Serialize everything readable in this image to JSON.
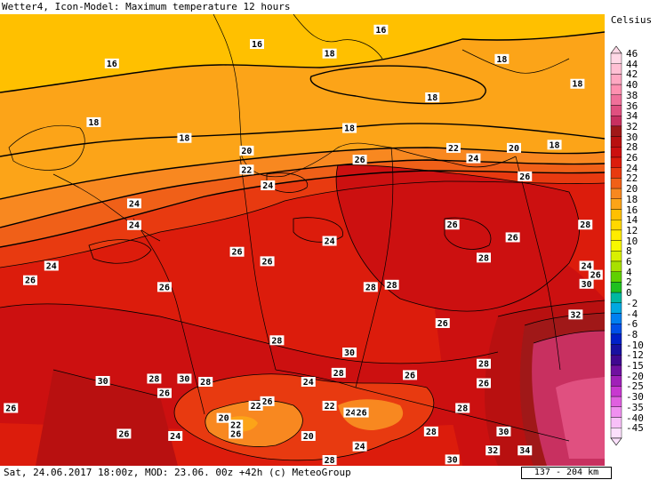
{
  "header": {
    "title": "Wetter4, Icon-Model: Maximum temperature 12 hours"
  },
  "footer": {
    "text": "Sat, 24.06.2017 18:00z, MOD: 23.06. 00z +42h (c) MeteoGroup",
    "scale": "137 - 204 km"
  },
  "legend": {
    "unit": "Celsius",
    "levels": [
      {
        "label": "46",
        "color": "#ffd8e6"
      },
      {
        "label": "44",
        "color": "#ffc0d4"
      },
      {
        "label": "42",
        "color": "#ffa8c2"
      },
      {
        "label": "40",
        "color": "#ff90b0"
      },
      {
        "label": "38",
        "color": "#f0709a"
      },
      {
        "label": "36",
        "color": "#e05080"
      },
      {
        "label": "34",
        "color": "#c83060"
      },
      {
        "label": "32",
        "color": "#a01818"
      },
      {
        "label": "30",
        "color": "#b81010"
      },
      {
        "label": "28",
        "color": "#cc1010"
      },
      {
        "label": "26",
        "color": "#dc1c0c"
      },
      {
        "label": "24",
        "color": "#e83a10"
      },
      {
        "label": "22",
        "color": "#f06018"
      },
      {
        "label": "20",
        "color": "#f88820"
      },
      {
        "label": "18",
        "color": "#fca418"
      },
      {
        "label": "16",
        "color": "#ffc000"
      },
      {
        "label": "14",
        "color": "#ffd800"
      },
      {
        "label": "12",
        "color": "#ffec00"
      },
      {
        "label": "10",
        "color": "#f8f800"
      },
      {
        "label": "8",
        "color": "#d8f000"
      },
      {
        "label": "6",
        "color": "#a8e000"
      },
      {
        "label": "4",
        "color": "#60d000"
      },
      {
        "label": "2",
        "color": "#20c020"
      },
      {
        "label": "0",
        "color": "#00b8a0"
      },
      {
        "label": "-2",
        "color": "#00a8e0"
      },
      {
        "label": "-4",
        "color": "#0080f0"
      },
      {
        "label": "-6",
        "color": "#0050e8"
      },
      {
        "label": "-8",
        "color": "#0020c8"
      },
      {
        "label": "-10",
        "color": "#1810a0"
      },
      {
        "label": "-12",
        "color": "#400890"
      },
      {
        "label": "-15",
        "color": "#7010a0"
      },
      {
        "label": "-20",
        "color": "#a020b8"
      },
      {
        "label": "-25",
        "color": "#c838d0"
      },
      {
        "label": "-30",
        "color": "#e060e0"
      },
      {
        "label": "-35",
        "color": "#f090f0"
      },
      {
        "label": "-40",
        "color": "#f8c0f8"
      },
      {
        "label": "-45",
        "color": "#fce0fc"
      }
    ]
  },
  "contour_labels": [
    {
      "text": "16",
      "lon": 0.63,
      "lat": 0.035
    },
    {
      "text": "16",
      "lon": 0.425,
      "lat": 0.067
    },
    {
      "text": "16",
      "lon": 0.185,
      "lat": 0.11
    },
    {
      "text": "18",
      "lon": 0.545,
      "lat": 0.088
    },
    {
      "text": "18",
      "lon": 0.83,
      "lat": 0.1
    },
    {
      "text": "18",
      "lon": 0.955,
      "lat": 0.155
    },
    {
      "text": "18",
      "lon": 0.715,
      "lat": 0.185
    },
    {
      "text": "18",
      "lon": 0.155,
      "lat": 0.24
    },
    {
      "text": "18",
      "lon": 0.305,
      "lat": 0.275
    },
    {
      "text": "18",
      "lon": 0.578,
      "lat": 0.253
    },
    {
      "text": "18",
      "lon": 0.917,
      "lat": 0.29
    },
    {
      "text": "20",
      "lon": 0.408,
      "lat": 0.303
    },
    {
      "text": "20",
      "lon": 0.85,
      "lat": 0.297
    },
    {
      "text": "22",
      "lon": 0.75,
      "lat": 0.297
    },
    {
      "text": "24",
      "lon": 0.783,
      "lat": 0.32
    },
    {
      "text": "26",
      "lon": 0.595,
      "lat": 0.323
    },
    {
      "text": "22",
      "lon": 0.408,
      "lat": 0.345
    },
    {
      "text": "26",
      "lon": 0.868,
      "lat": 0.36
    },
    {
      "text": "24",
      "lon": 0.443,
      "lat": 0.38
    },
    {
      "text": "24",
      "lon": 0.222,
      "lat": 0.42
    },
    {
      "text": "24",
      "lon": 0.222,
      "lat": 0.468
    },
    {
      "text": "26",
      "lon": 0.748,
      "lat": 0.467
    },
    {
      "text": "28",
      "lon": 0.968,
      "lat": 0.467
    },
    {
      "text": "26",
      "lon": 0.848,
      "lat": 0.495
    },
    {
      "text": "24",
      "lon": 0.545,
      "lat": 0.503
    },
    {
      "text": "28",
      "lon": 0.8,
      "lat": 0.54
    },
    {
      "text": "26",
      "lon": 0.392,
      "lat": 0.527
    },
    {
      "text": "26",
      "lon": 0.442,
      "lat": 0.548
    },
    {
      "text": "24",
      "lon": 0.085,
      "lat": 0.558
    },
    {
      "text": "24",
      "lon": 0.97,
      "lat": 0.558
    },
    {
      "text": "26",
      "lon": 0.985,
      "lat": 0.578
    },
    {
      "text": "30",
      "lon": 0.97,
      "lat": 0.598
    },
    {
      "text": "26",
      "lon": 0.05,
      "lat": 0.59
    },
    {
      "text": "26",
      "lon": 0.272,
      "lat": 0.605
    },
    {
      "text": "28",
      "lon": 0.613,
      "lat": 0.605
    },
    {
      "text": "28",
      "lon": 0.648,
      "lat": 0.6
    },
    {
      "text": "32",
      "lon": 0.952,
      "lat": 0.666
    },
    {
      "text": "26",
      "lon": 0.732,
      "lat": 0.685
    },
    {
      "text": "28",
      "lon": 0.458,
      "lat": 0.723
    },
    {
      "text": "30",
      "lon": 0.578,
      "lat": 0.75
    },
    {
      "text": "28",
      "lon": 0.8,
      "lat": 0.775
    },
    {
      "text": "28",
      "lon": 0.56,
      "lat": 0.795
    },
    {
      "text": "26",
      "lon": 0.678,
      "lat": 0.8
    },
    {
      "text": "24",
      "lon": 0.51,
      "lat": 0.815
    },
    {
      "text": "26",
      "lon": 0.8,
      "lat": 0.818
    },
    {
      "text": "30",
      "lon": 0.17,
      "lat": 0.813
    },
    {
      "text": "28",
      "lon": 0.255,
      "lat": 0.808
    },
    {
      "text": "30",
      "lon": 0.305,
      "lat": 0.808
    },
    {
      "text": "28",
      "lon": 0.34,
      "lat": 0.815
    },
    {
      "text": "26",
      "lon": 0.272,
      "lat": 0.84
    },
    {
      "text": "26",
      "lon": 0.442,
      "lat": 0.858
    },
    {
      "text": "22",
      "lon": 0.423,
      "lat": 0.868
    },
    {
      "text": "22",
      "lon": 0.545,
      "lat": 0.868
    },
    {
      "text": "24",
      "lon": 0.58,
      "lat": 0.883
    },
    {
      "text": "26",
      "lon": 0.598,
      "lat": 0.883
    },
    {
      "text": "28",
      "lon": 0.765,
      "lat": 0.873
    },
    {
      "text": "26",
      "lon": 0.018,
      "lat": 0.873
    },
    {
      "text": "20",
      "lon": 0.37,
      "lat": 0.895
    },
    {
      "text": "22",
      "lon": 0.39,
      "lat": 0.91
    },
    {
      "text": "26",
      "lon": 0.39,
      "lat": 0.93
    },
    {
      "text": "26",
      "lon": 0.205,
      "lat": 0.93
    },
    {
      "text": "24",
      "lon": 0.29,
      "lat": 0.935
    },
    {
      "text": "20",
      "lon": 0.51,
      "lat": 0.935
    },
    {
      "text": "28",
      "lon": 0.713,
      "lat": 0.925
    },
    {
      "text": "30",
      "lon": 0.833,
      "lat": 0.925
    },
    {
      "text": "24",
      "lon": 0.595,
      "lat": 0.958
    },
    {
      "text": "32",
      "lon": 0.815,
      "lat": 0.967
    },
    {
      "text": "34",
      "lon": 0.868,
      "lat": 0.967
    },
    {
      "text": "30",
      "lon": 0.748,
      "lat": 0.987
    },
    {
      "text": "28",
      "lon": 0.545,
      "lat": 1.0
    }
  ]
}
